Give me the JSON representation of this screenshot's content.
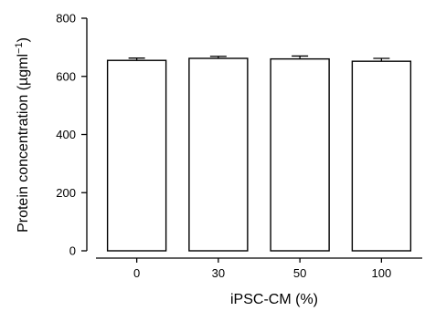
{
  "chart_data": {
    "type": "bar",
    "title": "",
    "xlabel": "iPSC-CM (%)",
    "ylabel_main": "Protein concentration (µgml",
    "ylabel_sup": "−1",
    "ylabel_close": ")",
    "categories": [
      "0",
      "30",
      "50",
      "100"
    ],
    "values": [
      655,
      662,
      660,
      652
    ],
    "errors": [
      8,
      7,
      10,
      10
    ],
    "ylim": [
      0,
      800
    ],
    "yticks": [
      "0",
      "200",
      "400",
      "600",
      "800"
    ],
    "grid": false,
    "legend": "none",
    "bar_fill": "#ffffff",
    "bar_stroke": "#000000"
  }
}
